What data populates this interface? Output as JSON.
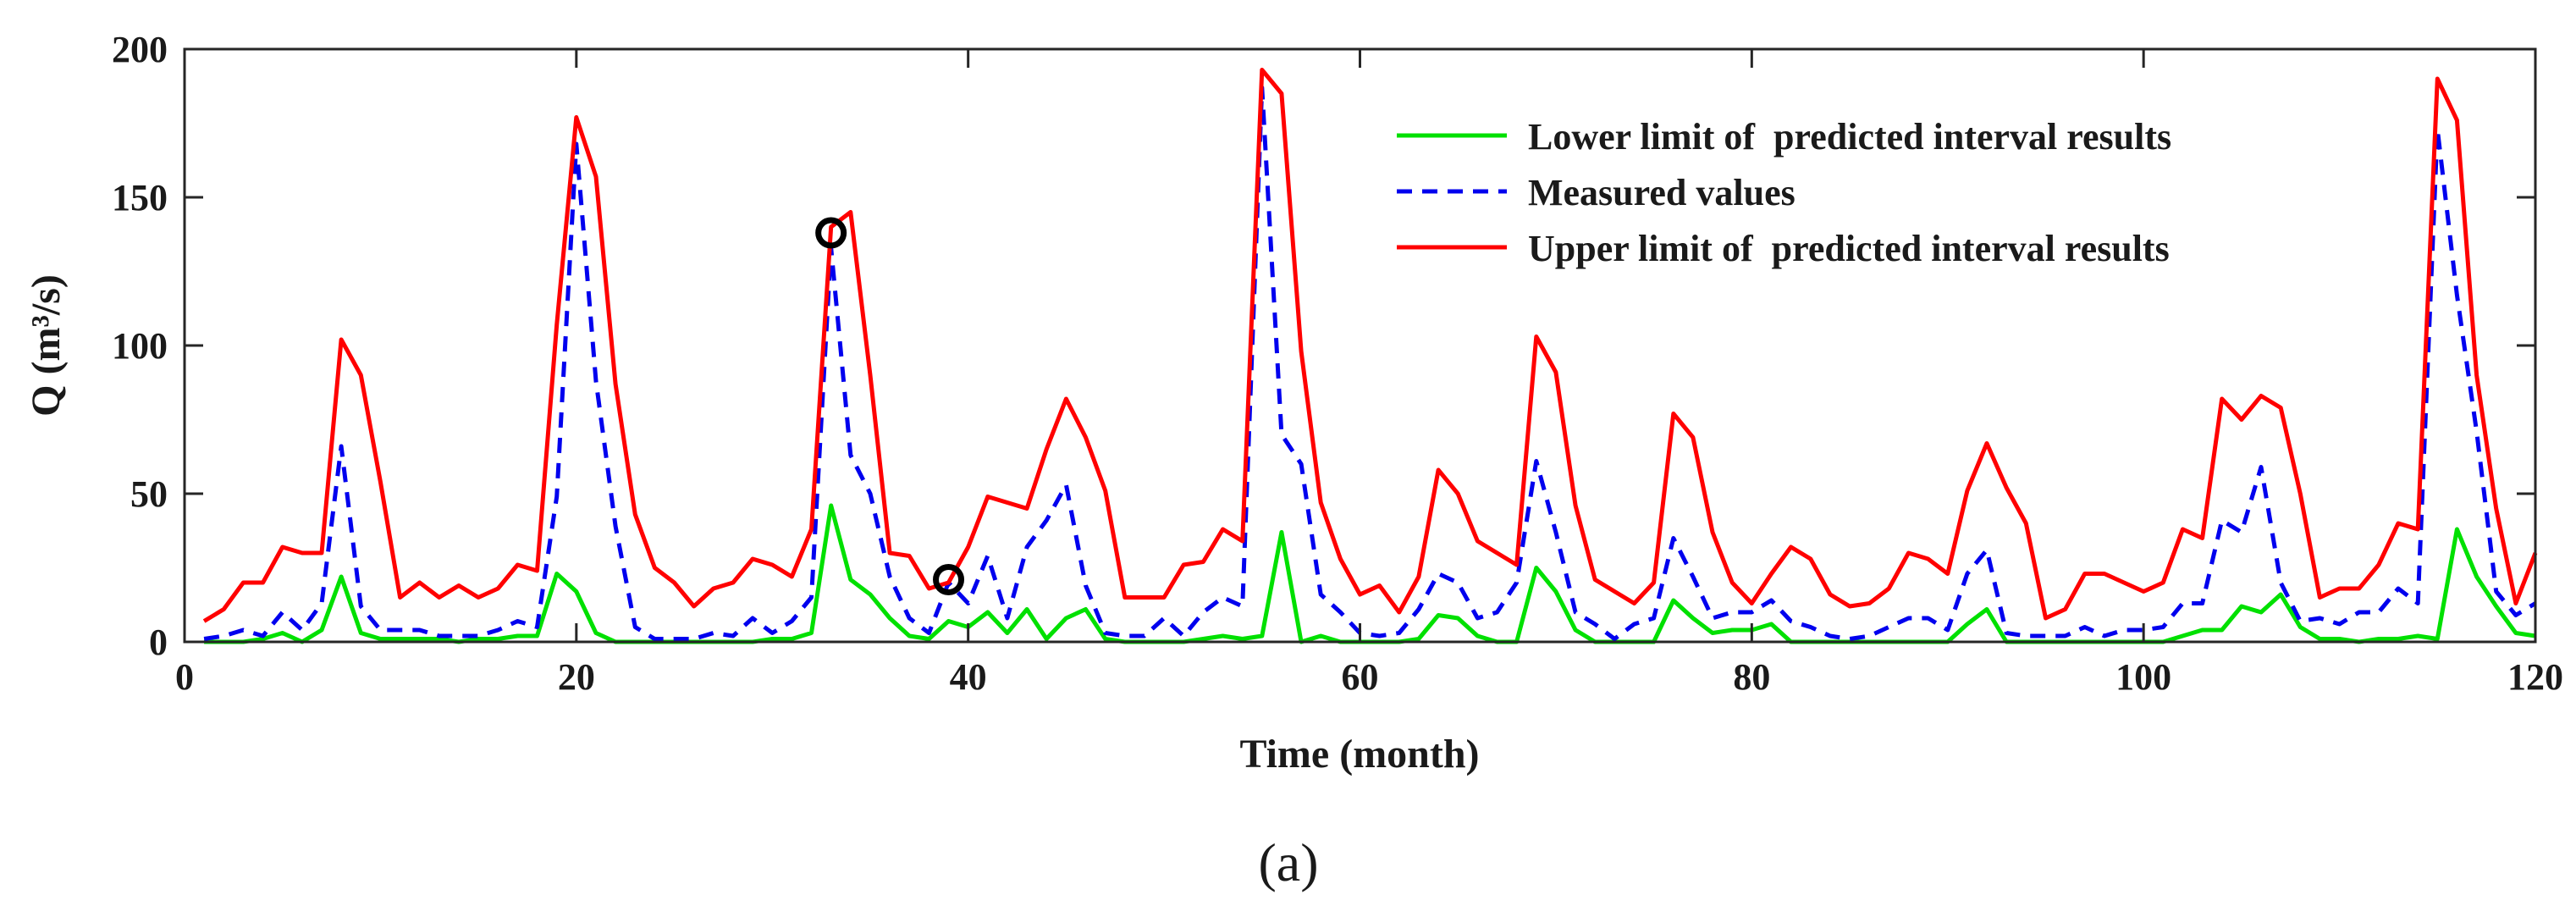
{
  "chart_data": {
    "type": "line",
    "title": "",
    "xlabel": "Time (month)",
    "ylabel": "Q (m³/s)",
    "xlim": [
      0,
      120
    ],
    "ylim": [
      0,
      200
    ],
    "xticks": [
      0,
      20,
      40,
      60,
      80,
      100,
      120
    ],
    "yticks": [
      0,
      50,
      100,
      150,
      200
    ],
    "grid": false,
    "legend_location": "top-right",
    "caption": "(a)",
    "x": [
      1,
      2,
      3,
      4,
      5,
      6,
      7,
      8,
      9,
      10,
      11,
      12,
      13,
      14,
      15,
      16,
      17,
      18,
      19,
      20,
      21,
      22,
      23,
      24,
      25,
      26,
      27,
      28,
      29,
      30,
      31,
      32,
      33,
      34,
      35,
      36,
      37,
      38,
      39,
      40,
      41,
      42,
      43,
      44,
      45,
      46,
      47,
      48,
      49,
      50,
      51,
      52,
      53,
      54,
      55,
      56,
      57,
      58,
      59,
      60,
      61,
      62,
      63,
      64,
      65,
      66,
      67,
      68,
      69,
      70,
      71,
      72,
      73,
      74,
      75,
      76,
      77,
      78,
      79,
      80,
      81,
      82,
      83,
      84,
      85,
      86,
      87,
      88,
      89,
      90,
      91,
      92,
      93,
      94,
      95,
      96,
      97,
      98,
      99,
      100,
      101,
      102,
      103,
      104,
      105,
      106,
      107,
      108,
      109,
      110,
      111,
      112,
      113,
      114,
      115,
      116,
      117,
      118,
      119,
      120
    ],
    "series": [
      {
        "name": "Lower limit of  predicted interval results",
        "color": "#00e000",
        "dash": "solid",
        "values": [
          0,
          0,
          0,
          1,
          3,
          0,
          4,
          22,
          3,
          1,
          1,
          1,
          1,
          0,
          1,
          1,
          2,
          2,
          23,
          17,
          3,
          0,
          0,
          0,
          0,
          0,
          0,
          0,
          0,
          1,
          1,
          3,
          46,
          21,
          16,
          8,
          2,
          1,
          7,
          5,
          10,
          3,
          11,
          1,
          8,
          11,
          1,
          0,
          0,
          0,
          0,
          1,
          2,
          1,
          2,
          37,
          0,
          2,
          0,
          0,
          0,
          0,
          1,
          9,
          8,
          2,
          0,
          0,
          25,
          17,
          4,
          0,
          0,
          0,
          0,
          14,
          8,
          3,
          4,
          4,
          6,
          0,
          0,
          0,
          0,
          0,
          0,
          0,
          0,
          0,
          6,
          11,
          0,
          0,
          0,
          0,
          0,
          0,
          0,
          0,
          0,
          2,
          4,
          4,
          12,
          10,
          16,
          5,
          1,
          1,
          0,
          1,
          1,
          2,
          1,
          38,
          22,
          12,
          3,
          2
        ]
      },
      {
        "name": "Measured values",
        "color": "#0000ee",
        "dash": "dashed",
        "values": [
          1,
          2,
          4,
          2,
          10,
          4,
          13,
          66,
          12,
          4,
          4,
          4,
          2,
          2,
          2,
          4,
          7,
          5,
          49,
          168,
          88,
          39,
          5,
          1,
          1,
          1,
          3,
          2,
          8,
          3,
          7,
          15,
          133,
          63,
          50,
          22,
          8,
          3,
          20,
          13,
          29,
          8,
          32,
          41,
          53,
          19,
          3,
          2,
          2,
          8,
          2,
          10,
          15,
          12,
          187,
          70,
          60,
          16,
          10,
          3,
          2,
          3,
          11,
          23,
          20,
          8,
          10,
          20,
          61,
          37,
          10,
          6,
          1,
          6,
          8,
          35,
          22,
          8,
          10,
          10,
          14,
          7,
          5,
          2,
          1,
          2,
          5,
          8,
          8,
          4,
          23,
          31,
          3,
          2,
          2,
          2,
          5,
          2,
          4,
          4,
          5,
          13,
          13,
          41,
          37,
          59,
          20,
          7,
          8,
          6,
          10,
          10,
          18,
          13,
          173,
          117,
          71,
          17,
          9,
          13
        ]
      },
      {
        "name": "Upper limit of  predicted interval results",
        "color": "#ff0000",
        "dash": "solid",
        "values": [
          7,
          11,
          20,
          20,
          32,
          30,
          30,
          102,
          90,
          54,
          15,
          20,
          15,
          19,
          15,
          18,
          26,
          24,
          107,
          177,
          157,
          87,
          43,
          25,
          20,
          12,
          18,
          20,
          28,
          26,
          22,
          38,
          140,
          145,
          90,
          30,
          29,
          18,
          20,
          32,
          49,
          47,
          45,
          65,
          82,
          69,
          51,
          15,
          15,
          15,
          26,
          27,
          38,
          34,
          193,
          185,
          98,
          47,
          28,
          16,
          19,
          10,
          22,
          58,
          50,
          34,
          30,
          26,
          103,
          91,
          46,
          21,
          17,
          13,
          20,
          77,
          69,
          37,
          20,
          13,
          23,
          32,
          28,
          16,
          12,
          13,
          18,
          30,
          28,
          23,
          51,
          67,
          52,
          40,
          8,
          11,
          23,
          23,
          20,
          17,
          20,
          38,
          35,
          82,
          75,
          83,
          79,
          50,
          15,
          18,
          18,
          26,
          40,
          38,
          190,
          176,
          90,
          45,
          13,
          30
        ]
      }
    ],
    "annotations": [
      {
        "x": 33,
        "y": 138,
        "marker": "o"
      },
      {
        "x": 39,
        "y": 21,
        "marker": "o"
      }
    ]
  }
}
